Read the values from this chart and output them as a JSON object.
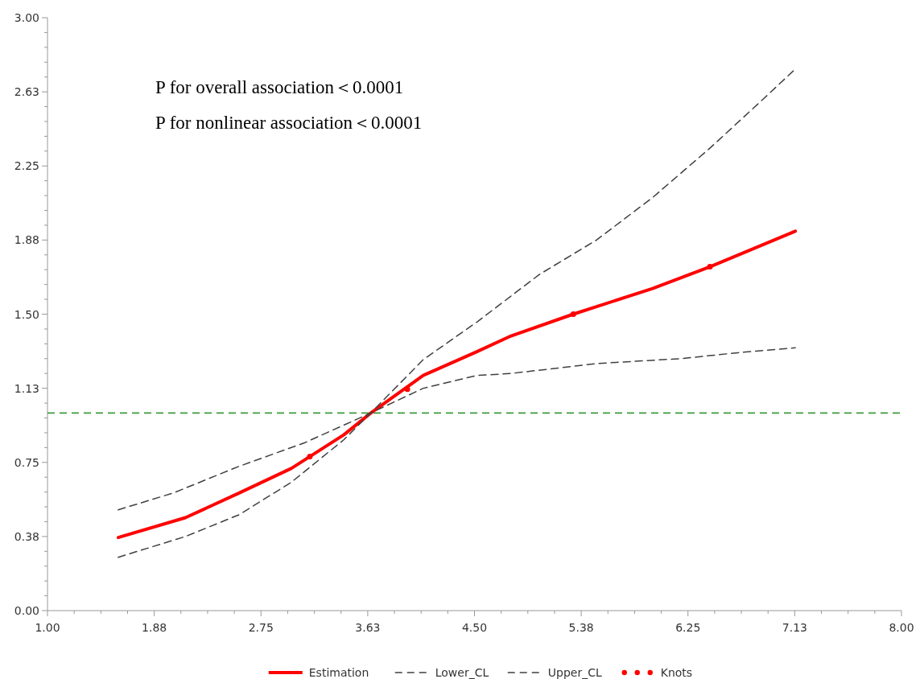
{
  "chart_data": {
    "type": "line",
    "annotations": [
      "P for overall association＜0.0001",
      "P for nonlinear association＜0.0001"
    ],
    "xlim": [
      1,
      8
    ],
    "xticks": [
      {
        "value": 1,
        "label": "1.00"
      },
      {
        "value": 1.875,
        "label": "1.88"
      },
      2.75,
      {
        "value": 3.625,
        "label": "3.63"
      },
      {
        "value": 4.5,
        "label": "4.50"
      },
      {
        "value": 5.375,
        "label": "5.38"
      },
      6.25,
      {
        "value": 7.125,
        "label": "7.13"
      },
      {
        "value": 8,
        "label": "8.00"
      }
    ],
    "ylim": [
      0,
      3
    ],
    "yticks": [
      {
        "value": 0,
        "label": "0.00"
      },
      {
        "value": 0.375,
        "label": "0.38"
      },
      0.75,
      {
        "value": 1.125,
        "label": "1.13"
      },
      {
        "value": 1.5,
        "label": "1.50"
      },
      {
        "value": 1.875,
        "label": "1.88"
      },
      2.25,
      {
        "value": 2.625,
        "label": "2.63"
      },
      {
        "value": 3,
        "label": "3.00"
      }
    ],
    "grid": false,
    "legend": "bottom",
    "ref_lines": [
      {
        "axis": "y",
        "value": 1,
        "color": "#3a9a3a",
        "line_style": "dashed"
      }
    ],
    "series": [
      {
        "name": "Estimation",
        "color": "#ff0000",
        "line_style": "solid",
        "x": [
          1.58,
          2.13,
          2.57,
          3.0,
          3.43,
          3.65,
          4.08,
          4.52,
          4.8,
          5.31,
          5.96,
          6.43,
          7.13
        ],
        "values": [
          0.37,
          0.47,
          0.595,
          0.72,
          0.89,
          1.0,
          1.19,
          1.31,
          1.39,
          1.5,
          1.63,
          1.74,
          1.92
        ]
      },
      {
        "name": "Lower_CL",
        "color": "#404040",
        "line_style": "dashed",
        "x": [
          1.58,
          2.13,
          2.57,
          3.0,
          3.43,
          3.65,
          4.08,
          4.52,
          4.8,
          5.5,
          6.19,
          6.66,
          7.13
        ],
        "values": [
          0.27,
          0.375,
          0.485,
          0.65,
          0.865,
          1.0,
          1.125,
          1.19,
          1.2,
          1.25,
          1.275,
          1.305,
          1.33
        ]
      },
      {
        "name": "Upper_CL",
        "color": "#404040",
        "line_style": "dashed",
        "x": [
          1.58,
          2.03,
          2.57,
          3.11,
          3.65,
          4.08,
          4.52,
          5.03,
          5.5,
          5.96,
          6.43,
          6.87,
          7.13
        ],
        "values": [
          0.51,
          0.595,
          0.73,
          0.85,
          1.0,
          1.27,
          1.46,
          1.7,
          1.875,
          2.09,
          2.34,
          2.59,
          2.74
        ]
      },
      {
        "name": "Knots",
        "type": "scatter",
        "color": "#ff0000",
        "marker": "circle",
        "x": [
          3.15,
          3.95,
          5.31,
          6.43
        ],
        "values": [
          0.78,
          1.12,
          1.5,
          1.74
        ]
      }
    ]
  }
}
